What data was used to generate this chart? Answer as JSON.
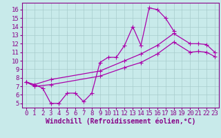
{
  "xlabel": "Windchill (Refroidissement éolien,°C)",
  "bg_color": "#c8eaea",
  "grid_color": "#a8cccc",
  "line_color": "#aa00aa",
  "xlim_min": -0.5,
  "xlim_max": 23.5,
  "ylim_min": 4.5,
  "ylim_max": 16.8,
  "yticks": [
    5,
    6,
    7,
    8,
    9,
    10,
    11,
    12,
    13,
    14,
    15,
    16
  ],
  "xticks": [
    0,
    1,
    2,
    3,
    4,
    5,
    6,
    7,
    8,
    9,
    10,
    11,
    12,
    13,
    14,
    15,
    16,
    17,
    18,
    19,
    20,
    21,
    22,
    23
  ],
  "line1_x": [
    0,
    1,
    2,
    3,
    4,
    5,
    6,
    7,
    8,
    9,
    10,
    11,
    12,
    13,
    14,
    15,
    16,
    17,
    18
  ],
  "line1_y": [
    7.5,
    7.2,
    6.8,
    5.0,
    5.0,
    6.2,
    6.2,
    5.2,
    6.2,
    9.8,
    10.4,
    10.4,
    11.8,
    14.0,
    11.8,
    16.2,
    16.0,
    15.0,
    13.5
  ],
  "line2_x": [
    0,
    1,
    3,
    9,
    12,
    14,
    16,
    18,
    20,
    21,
    22,
    23
  ],
  "line2_y": [
    7.5,
    7.2,
    7.8,
    8.8,
    10.0,
    10.8,
    11.8,
    13.2,
    12.0,
    12.0,
    11.9,
    11.0
  ],
  "line3_x": [
    0,
    1,
    3,
    9,
    12,
    14,
    16,
    18,
    20,
    21,
    22,
    23
  ],
  "line3_y": [
    7.5,
    7.0,
    7.2,
    8.2,
    9.2,
    9.8,
    10.8,
    12.2,
    11.0,
    11.1,
    11.0,
    10.5
  ],
  "font_size_label": 7,
  "font_size_tick": 6.5,
  "line_width": 0.9,
  "marker_size": 2.5
}
